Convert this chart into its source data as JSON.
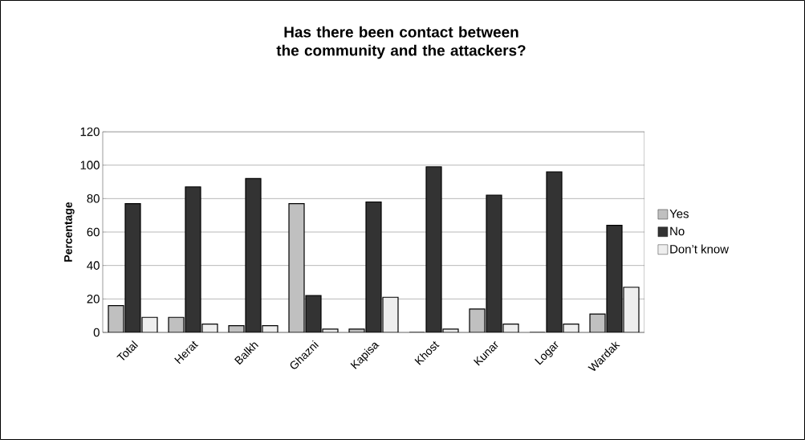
{
  "chart_data": {
    "type": "bar",
    "title": "Has there been contact between the community and the attackers?",
    "ylabel": "Percentage",
    "categories": [
      "Total",
      "Herat",
      "Balkh",
      "Ghazni",
      "Kapisa",
      "Khost",
      "Kunar",
      "Logar",
      "Wardak"
    ],
    "series": [
      {
        "name": "Yes",
        "color": "#c0c0c0",
        "values": [
          16,
          9,
          4,
          77,
          2,
          0,
          14,
          0,
          11
        ]
      },
      {
        "name": "No",
        "color": "#333333",
        "values": [
          77,
          87,
          92,
          22,
          78,
          99,
          82,
          96,
          64
        ]
      },
      {
        "name": "Don’t know",
        "color": "#eeeeee",
        "values": [
          9,
          5,
          4,
          2,
          21,
          2,
          5,
          5,
          27
        ]
      }
    ],
    "ylim": [
      0,
      120
    ],
    "yticks": [
      0,
      20,
      40,
      60,
      80,
      100,
      120
    ],
    "grid": "y",
    "legend": "right"
  }
}
